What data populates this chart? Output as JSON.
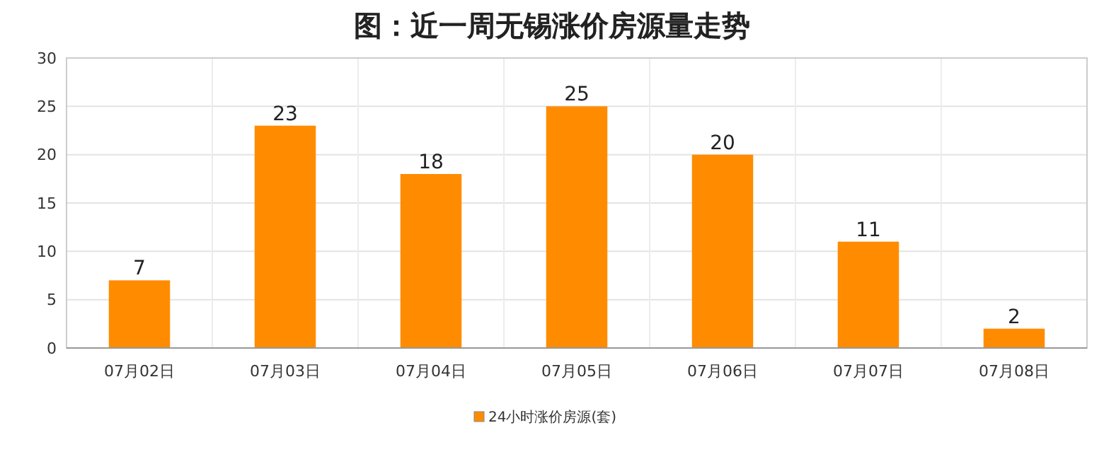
{
  "chart_data": {
    "type": "bar",
    "title": "图：近一周无锡涨价房源量走势",
    "categories": [
      "07月02日",
      "07月03日",
      "07月04日",
      "07月05日",
      "07月06日",
      "07月07日",
      "07月08日"
    ],
    "series": [
      {
        "name": "24小时涨价房源(套)",
        "color": "#ff8c00",
        "values": [
          7,
          23,
          18,
          25,
          20,
          11,
          2
        ]
      }
    ],
    "ylim": [
      0,
      30
    ],
    "yticks": [
      0,
      5,
      10,
      15,
      20,
      25,
      30
    ],
    "grid": true,
    "legend": "bottom",
    "data_labels": true
  }
}
